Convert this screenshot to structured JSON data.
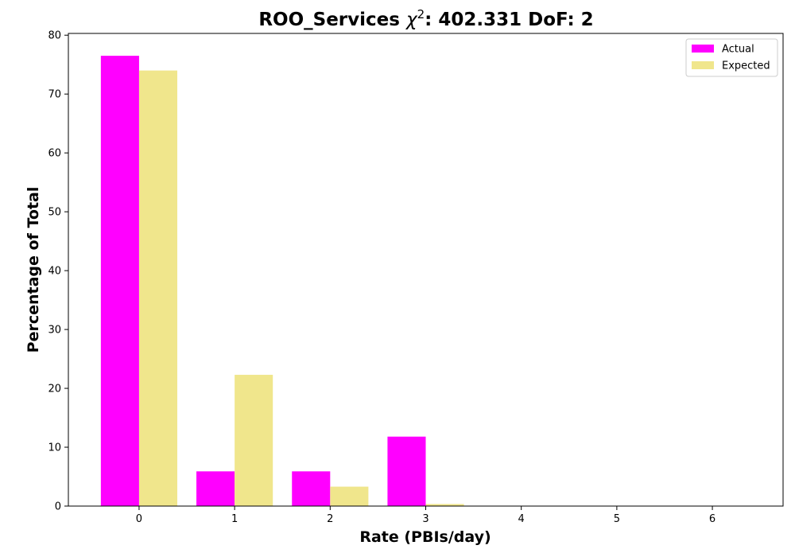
{
  "chart_data": {
    "type": "bar",
    "title": "ROO_Services χ²: 402.331 DoF: 2",
    "title_parts": {
      "prefix": "ROO_Services ",
      "chi": "χ",
      "sup": "2",
      "suffix": ": 402.331 DoF: 2"
    },
    "xlabel": "Rate (PBIs/day)",
    "ylabel": "Percentage of Total",
    "x": [
      0,
      1,
      2,
      3,
      4,
      5,
      6
    ],
    "xlim": [
      -0.74,
      6.74
    ],
    "ylim": [
      0,
      80.3
    ],
    "yticks": [
      0,
      10,
      20,
      30,
      40,
      50,
      60,
      70,
      80
    ],
    "grid": false,
    "legend_position": "top-right",
    "series": [
      {
        "name": "Actual",
        "color": "#ff00ff",
        "values": [
          76.5,
          5.9,
          5.9,
          11.8,
          0,
          0,
          0
        ]
      },
      {
        "name": "Expected",
        "color": "#f0e68c",
        "values": [
          74.0,
          22.3,
          3.3,
          0.35,
          0.03,
          0,
          0
        ]
      }
    ]
  }
}
